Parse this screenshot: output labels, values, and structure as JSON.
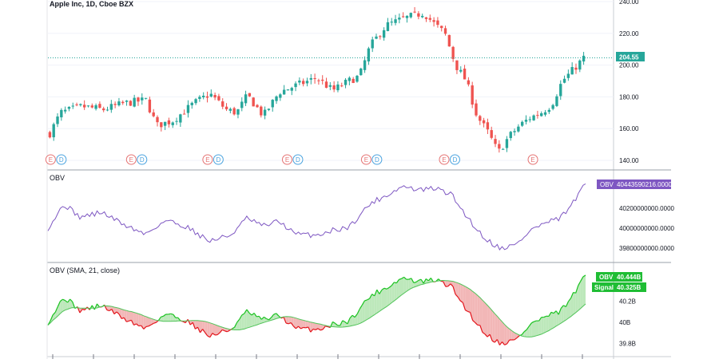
{
  "chart_data": [
    {
      "type": "candlestick",
      "title": "Apple Inc, 1D, Cboe BZX",
      "y_ticks": [
        "240.00",
        "220.00",
        "200.00",
        "180.00",
        "160.00",
        "140.00"
      ],
      "ylim": [
        134,
        241
      ],
      "last_price_label": "204.55",
      "last_price": 204.55,
      "earnings_marker_label": "E",
      "dividend_marker_label": "D",
      "earnings_positions": [
        0.005,
        0.155,
        0.297,
        0.445,
        0.592,
        0.737,
        0.902
      ],
      "dividend_positions": [
        0.025,
        0.175,
        0.317,
        0.465,
        0.612,
        0.757
      ],
      "colors": {
        "up": "#26a69a",
        "down": "#ef5350",
        "price_line": "#26a69a"
      },
      "anchors": [
        [
          0,
          157
        ],
        [
          0.02,
          170
        ],
        [
          0.06,
          174
        ],
        [
          0.1,
          172
        ],
        [
          0.14,
          176
        ],
        [
          0.18,
          178
        ],
        [
          0.2,
          162
        ],
        [
          0.23,
          165
        ],
        [
          0.27,
          176
        ],
        [
          0.3,
          182
        ],
        [
          0.33,
          172
        ],
        [
          0.35,
          170
        ],
        [
          0.37,
          181
        ],
        [
          0.4,
          168
        ],
        [
          0.43,
          183
        ],
        [
          0.46,
          187
        ],
        [
          0.5,
          192
        ],
        [
          0.53,
          184
        ],
        [
          0.56,
          190
        ],
        [
          0.58,
          193
        ],
        [
          0.6,
          212
        ],
        [
          0.63,
          225
        ],
        [
          0.66,
          229
        ],
        [
          0.7,
          233
        ],
        [
          0.72,
          226
        ],
        [
          0.74,
          220
        ],
        [
          0.76,
          200
        ],
        [
          0.78,
          190
        ],
        [
          0.8,
          168
        ],
        [
          0.82,
          158
        ],
        [
          0.84,
          145
        ],
        [
          0.86,
          155
        ],
        [
          0.88,
          162
        ],
        [
          0.9,
          167
        ],
        [
          0.92,
          170
        ],
        [
          0.94,
          175
        ],
        [
          0.96,
          190
        ],
        [
          0.98,
          197
        ],
        [
          1.0,
          204.5
        ]
      ],
      "candle_count": 140
    },
    {
      "type": "line",
      "title": "OBV",
      "series_label": "OBV",
      "value_label": "40443590216.0000",
      "y_ticks": [
        "40200000000.0000",
        "40000000000.0000",
        "39800000000.0000"
      ],
      "ylim": [
        39720000000,
        40520000000
      ],
      "color": "#7e57c2",
      "anchors": [
        [
          0,
          40000000000
        ],
        [
          0.03,
          40240000000
        ],
        [
          0.06,
          40110000000
        ],
        [
          0.1,
          40160000000
        ],
        [
          0.14,
          40040000000
        ],
        [
          0.18,
          39940000000
        ],
        [
          0.22,
          40080000000
        ],
        [
          0.26,
          40010000000
        ],
        [
          0.3,
          39870000000
        ],
        [
          0.34,
          39930000000
        ],
        [
          0.37,
          40100000000
        ],
        [
          0.4,
          40020000000
        ],
        [
          0.43,
          40070000000
        ],
        [
          0.46,
          39940000000
        ],
        [
          0.5,
          39930000000
        ],
        [
          0.53,
          39980000000
        ],
        [
          0.56,
          40010000000
        ],
        [
          0.6,
          40250000000
        ],
        [
          0.63,
          40330000000
        ],
        [
          0.66,
          40420000000
        ],
        [
          0.69,
          40380000000
        ],
        [
          0.72,
          40400000000
        ],
        [
          0.75,
          40340000000
        ],
        [
          0.78,
          40110000000
        ],
        [
          0.81,
          39910000000
        ],
        [
          0.84,
          39800000000
        ],
        [
          0.87,
          39830000000
        ],
        [
          0.9,
          39990000000
        ],
        [
          0.93,
          40060000000
        ],
        [
          0.95,
          40090000000
        ],
        [
          0.97,
          40200000000
        ],
        [
          1.0,
          40440000000
        ]
      ]
    },
    {
      "type": "area",
      "title": "OBV (SMA, 21, close)",
      "y_ticks": [
        "40.2B",
        "40B",
        "39.8B"
      ],
      "ylim": [
        39720000000,
        40520000000
      ],
      "obv_label": "OBV",
      "obv_value": "40.444B",
      "signal_label": "Signal",
      "signal_value": "40.325B",
      "colors": {
        "obv_line_up": "#19c21f",
        "obv_line_down": "#e3141b",
        "fill_up": "#bde8bb",
        "fill_down": "#f2b7b7",
        "signal": "#52c45a",
        "badge": "#1fbd34"
      }
    }
  ]
}
